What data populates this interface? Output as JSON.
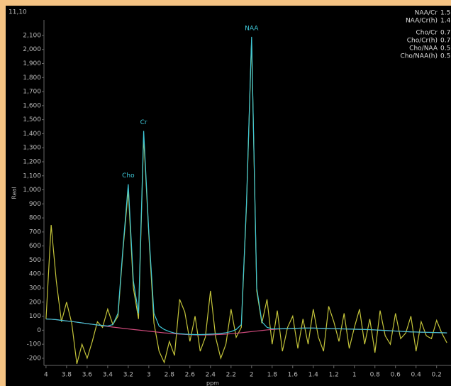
{
  "chart_data": {
    "type": "line",
    "title": "11,10",
    "xlabel": "ppm",
    "ylabel": "Real",
    "xlim": [
      4.02,
      0.06
    ],
    "ylim": [
      -251,
      2211
    ],
    "xticks": [
      4,
      3.8,
      3.6,
      3.4,
      3.2,
      3,
      2.8,
      2.6,
      2.4,
      2.2,
      2,
      1.8,
      1.6,
      1.4,
      1.2,
      1,
      0.8,
      0.6,
      0.4,
      0.2
    ],
    "yticks": [
      -200,
      -100,
      0,
      100,
      200,
      300,
      400,
      500,
      600,
      700,
      800,
      900,
      {
        "value": 1000,
        "label": "1,000"
      },
      {
        "value": 1100,
        "label": "1,100"
      },
      {
        "value": 1200,
        "label": "1,200"
      },
      {
        "value": 1300,
        "label": "1,300"
      },
      {
        "value": 1400,
        "label": "1,400"
      },
      {
        "value": 1500,
        "label": "1,500"
      },
      {
        "value": 1600,
        "label": "1,600"
      },
      {
        "value": 1700,
        "label": "1,700"
      },
      {
        "value": 1800,
        "label": "1,800"
      },
      {
        "value": 1900,
        "label": "1,900"
      },
      {
        "value": 2000,
        "label": "2,000"
      },
      {
        "value": 2100,
        "label": "2,100"
      }
    ],
    "grid": false,
    "x": [
      4.0,
      3.95,
      3.9,
      3.85,
      3.8,
      3.75,
      3.7,
      3.65,
      3.6,
      3.55,
      3.5,
      3.45,
      3.4,
      3.35,
      3.3,
      3.25,
      3.2,
      3.15,
      3.1,
      3.05,
      3.0,
      2.95,
      2.9,
      2.85,
      2.8,
      2.75,
      2.7,
      2.65,
      2.6,
      2.55,
      2.5,
      2.45,
      2.4,
      2.35,
      2.3,
      2.25,
      2.2,
      2.15,
      2.1,
      2.05,
      2.0,
      1.95,
      1.9,
      1.85,
      1.8,
      1.75,
      1.7,
      1.65,
      1.6,
      1.55,
      1.5,
      1.45,
      1.4,
      1.35,
      1.3,
      1.25,
      1.2,
      1.15,
      1.1,
      1.05,
      1.0,
      0.95,
      0.9,
      0.85,
      0.8,
      0.75,
      0.7,
      0.65,
      0.6,
      0.55,
      0.5,
      0.45,
      0.4,
      0.35,
      0.3,
      0.25,
      0.2,
      0.15,
      0.1
    ],
    "series": [
      {
        "color": "#c4c43a",
        "values": [
          80,
          750,
          350,
          60,
          200,
          50,
          -240,
          -100,
          -200,
          -80,
          60,
          20,
          150,
          40,
          100,
          580,
          1000,
          300,
          80,
          1380,
          680,
          50,
          -150,
          -230,
          -80,
          -180,
          220,
          130,
          -80,
          100,
          -150,
          -50,
          280,
          -50,
          -200,
          -100,
          150,
          -50,
          20,
          880,
          2070,
          280,
          50,
          220,
          -100,
          140,
          -150,
          20,
          100,
          -130,
          80,
          -100,
          150,
          -50,
          -150,
          170,
          60,
          -80,
          120,
          -130,
          20,
          150,
          -100,
          80,
          -160,
          140,
          -40,
          -100,
          120,
          -60,
          -20,
          100,
          -150,
          60,
          -40,
          -60,
          70,
          -20,
          -90
        ]
      },
      {
        "color": "#d04a7c",
        "values": [
          80,
          78,
          75,
          70,
          66,
          62,
          57,
          52,
          47,
          42,
          37,
          32,
          27,
          22,
          18,
          13,
          9,
          5,
          1,
          -3,
          -7,
          -11,
          -15,
          -19,
          -22,
          -25,
          -28,
          -30,
          -32,
          -33,
          -34,
          -34,
          -33,
          -32,
          -30,
          -28,
          -25,
          -22,
          -18,
          -14,
          -10,
          -6,
          -2,
          2,
          5,
          8,
          10,
          12,
          13,
          14,
          15,
          15,
          15,
          14,
          13,
          12,
          11,
          10,
          9,
          8,
          7,
          6,
          5,
          4,
          2,
          0,
          -2,
          -4,
          -6,
          -8,
          -10,
          -12,
          -13,
          -14,
          -15,
          -16,
          -17,
          -18,
          -19
        ]
      },
      {
        "color": "#3ec6d6",
        "values": [
          80,
          78,
          75,
          70,
          66,
          62,
          57,
          52,
          47,
          42,
          37,
          34,
          30,
          40,
          120,
          600,
          1040,
          350,
          120,
          1420,
          700,
          120,
          30,
          5,
          -10,
          -20,
          -25,
          -28,
          -30,
          -31,
          -31,
          -30,
          -28,
          -26,
          -23,
          -18,
          -10,
          5,
          40,
          900,
          2090,
          300,
          60,
          20,
          10,
          10,
          10,
          12,
          13,
          14,
          15,
          15,
          15,
          14,
          13,
          12,
          11,
          10,
          9,
          8,
          7,
          6,
          5,
          4,
          2,
          0,
          -2,
          -4,
          -6,
          -8,
          -10,
          -12,
          -13,
          -14,
          -15,
          -16,
          -17,
          -18,
          -19
        ]
      }
    ],
    "annotations": [
      {
        "text": "Cho",
        "x": 3.2
      },
      {
        "text": "Cr",
        "x": 3.05
      },
      {
        "text": "NAA",
        "x": 2.0
      }
    ],
    "ratios": [
      {
        "name": "NAA/Cr",
        "value": 1.5
      },
      {
        "name": "NAA/Cr(h)",
        "value": 1.4
      },
      {
        "name": "Cho/Cr",
        "value": 0.7
      },
      {
        "name": "Cho/Cr(h)",
        "value": 0.7
      },
      {
        "name": "Cho/NAA",
        "value": 0.5
      },
      {
        "name": "Cho/NAA(h)",
        "value": 0.5
      }
    ]
  }
}
